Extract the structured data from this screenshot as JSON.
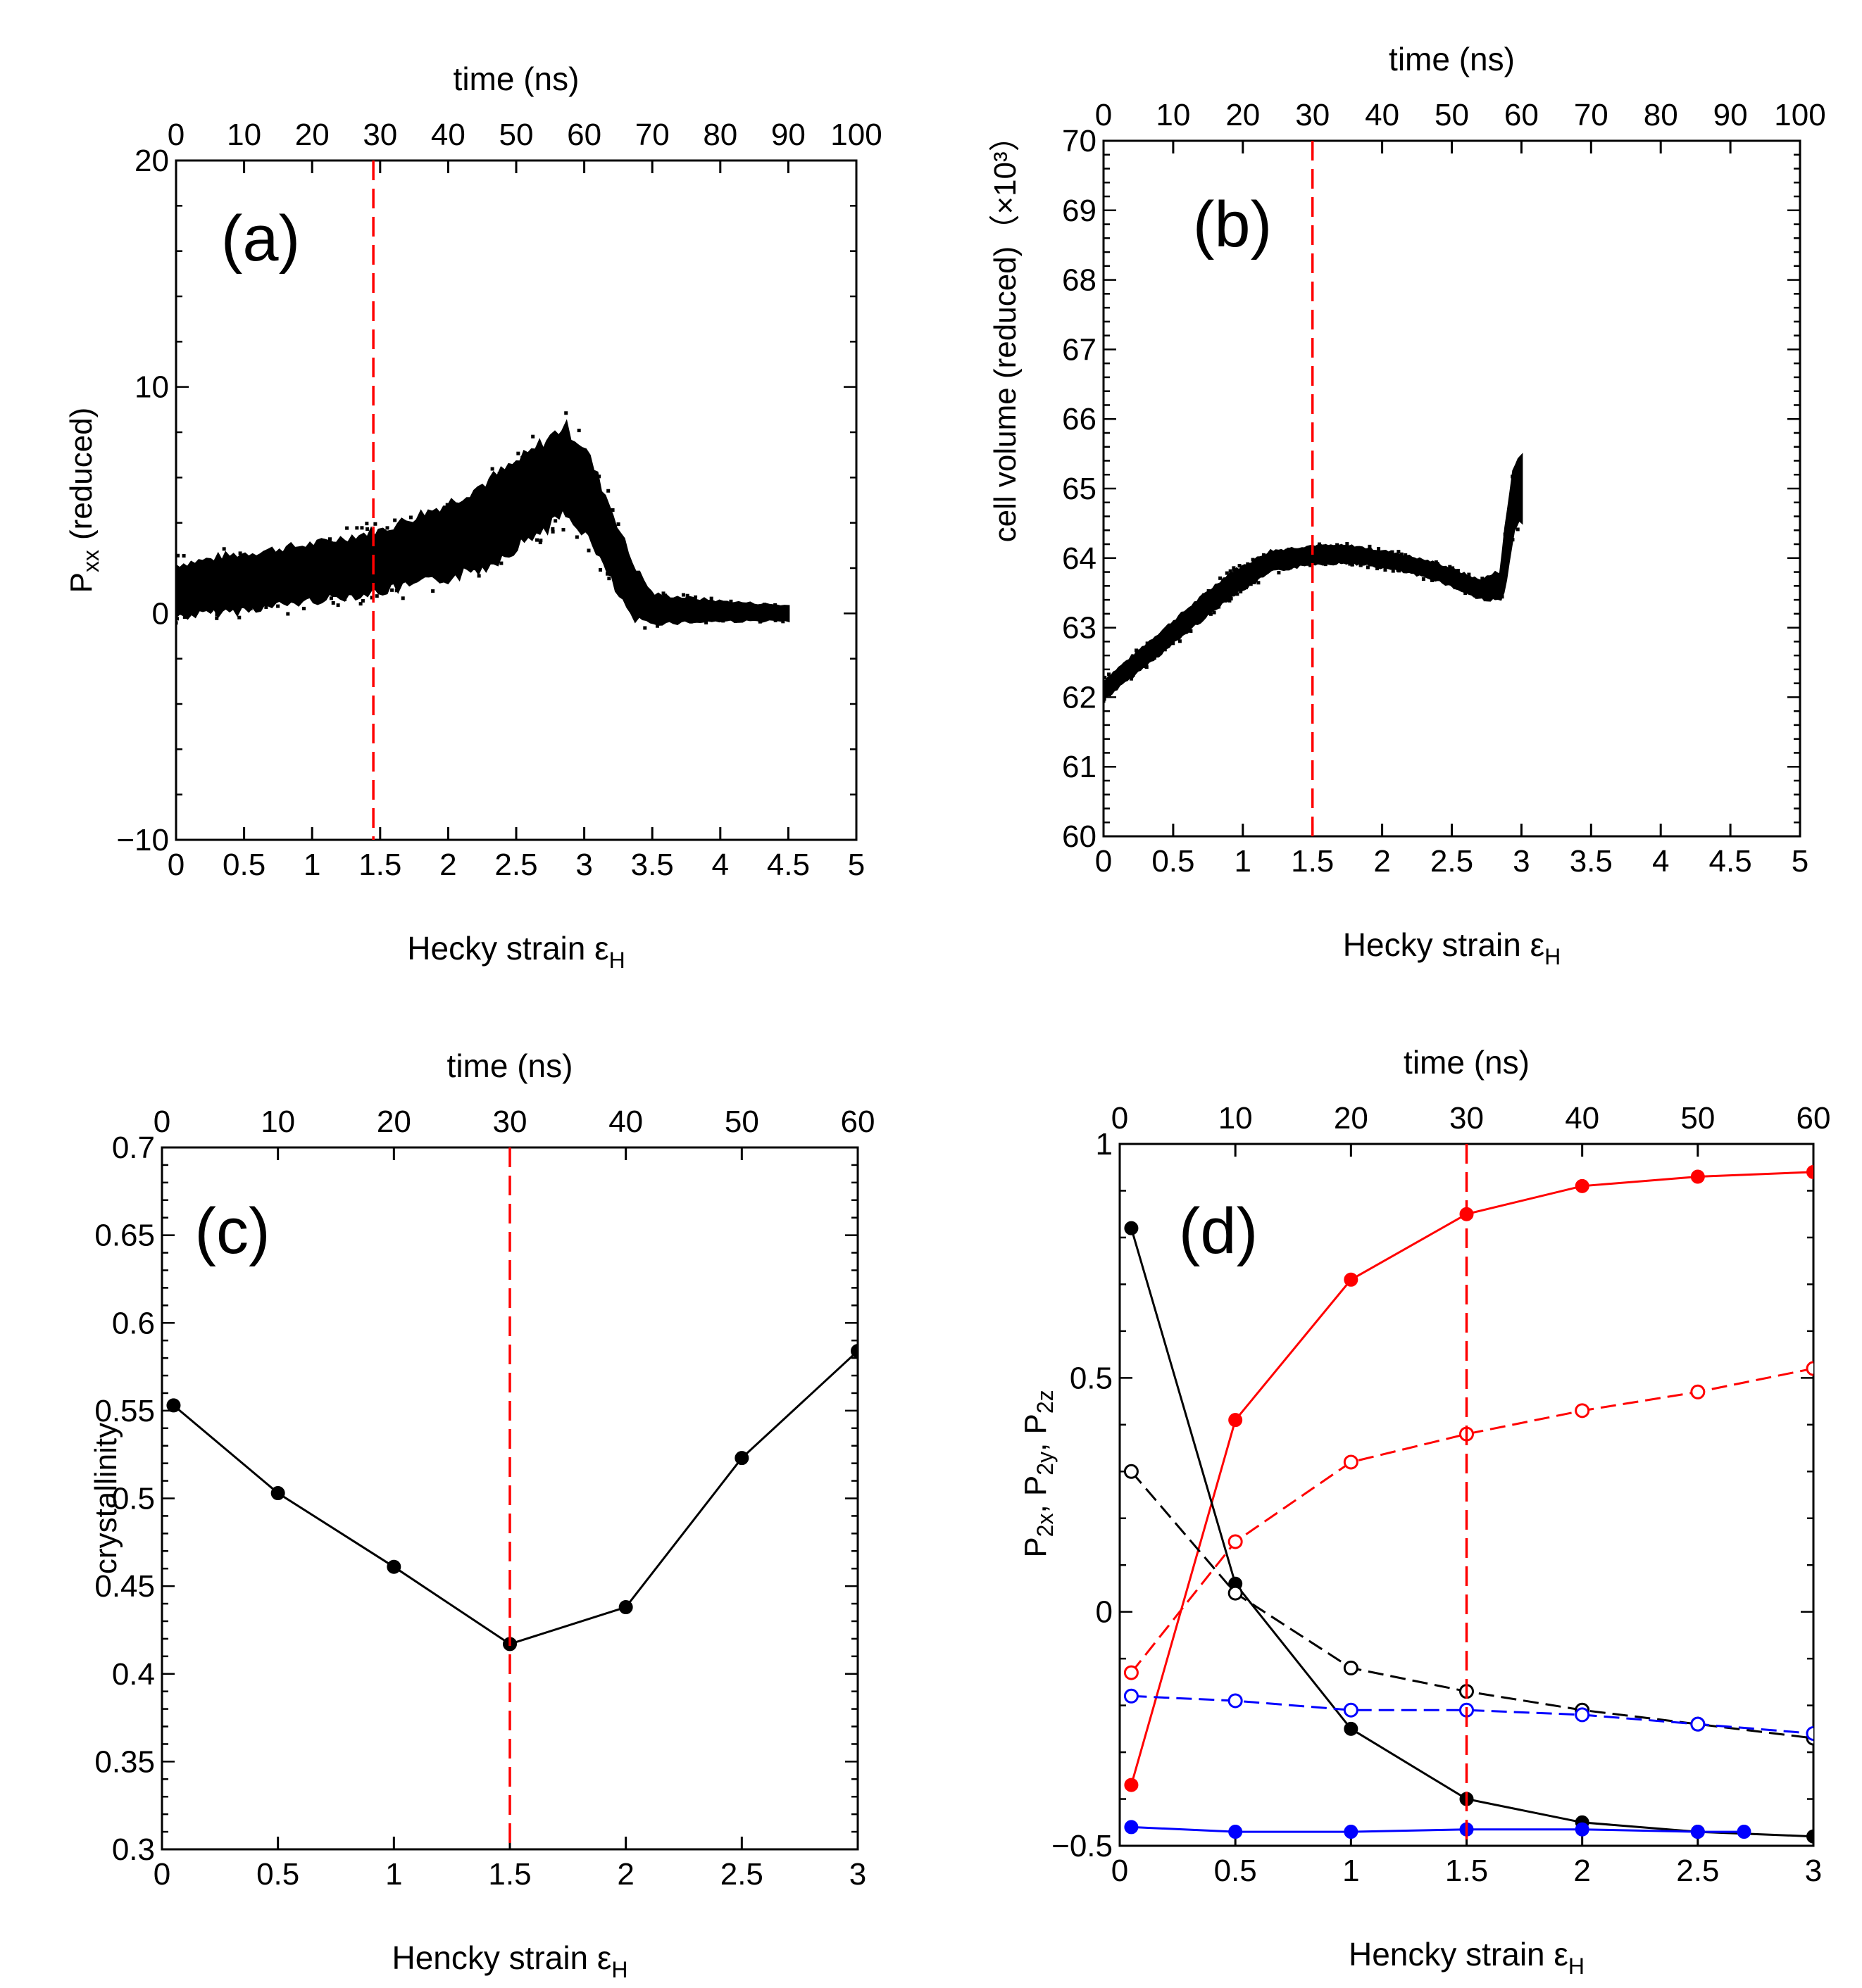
{
  "figure": {
    "background": "#ffffff",
    "colors": {
      "black": "#000000",
      "red": "#ff0000",
      "blue": "#0000ff",
      "dashed_marker": "#ff0000"
    }
  },
  "chart_data": [
    {
      "id": "a",
      "type": "scatter",
      "label": "(a)",
      "title": "time  (ns)",
      "xlabel": "Hecky strain ε",
      "xlabel_sub": "H",
      "ylabel": "P",
      "ylabel_sub": "xx",
      "ylabel_tail": "(reduced)",
      "xlim": [
        0,
        5
      ],
      "ylim": [
        -10,
        20
      ],
      "x_ticks": [
        0,
        0.5,
        1,
        1.5,
        2,
        2.5,
        3,
        3.5,
        4,
        4.5,
        5
      ],
      "x_tick_labels": [
        "0",
        "0.5",
        "1",
        "1.5",
        "2",
        "2.5",
        "3",
        "3.5",
        "4",
        "4.5",
        "5"
      ],
      "y_ticks": [
        -10,
        0,
        10,
        20
      ],
      "y_tick_labels": [
        "−10",
        "0",
        "10",
        "20"
      ],
      "top_ticks": [
        0,
        0.5,
        1,
        1.5,
        2,
        2.5,
        3,
        3.5,
        4,
        4.5,
        5
      ],
      "top_tick_labels": [
        "0",
        "10",
        "20",
        "30",
        "40",
        "50",
        "60",
        "70",
        "80",
        "90",
        "100"
      ],
      "vline_x": 1.45,
      "band": {
        "x": [
          0,
          0.5,
          1,
          1.5,
          2,
          2.3,
          2.6,
          2.85,
          3.0,
          3.2,
          3.35,
          3.5,
          4.0,
          4.5
        ],
        "mid": [
          1.0,
          1.4,
          1.8,
          2.3,
          3.2,
          4.0,
          5.2,
          6.3,
          5.5,
          3.0,
          1.0,
          0.2,
          0.1,
          0.0
        ],
        "half": [
          1.1,
          1.2,
          1.2,
          1.3,
          1.6,
          1.8,
          1.8,
          1.9,
          1.8,
          1.5,
          1.2,
          0.6,
          0.4,
          0.3
        ],
        "series_name": "Pxx"
      }
    },
    {
      "id": "b",
      "type": "scatter",
      "label": "(b)",
      "title": "time  (ns)",
      "xlabel": "Hecky strain ε",
      "xlabel_sub": "H",
      "ylabel": "cell volume  (reduced)",
      "ylabel_exp": "（×10³）",
      "xlim": [
        0,
        5
      ],
      "ylim": [
        60,
        70
      ],
      "x_ticks": [
        0,
        0.5,
        1,
        1.5,
        2,
        2.5,
        3,
        3.5,
        4,
        4.5,
        5
      ],
      "x_tick_labels": [
        "0",
        "0.5",
        "1",
        "1.5",
        "2",
        "2.5",
        "3",
        "3.5",
        "4",
        "4.5",
        "5"
      ],
      "y_ticks": [
        60,
        61,
        62,
        63,
        64,
        65,
        66,
        67,
        68,
        69,
        70
      ],
      "y_tick_labels": [
        "60",
        "61",
        "62",
        "63",
        "64",
        "65",
        "66",
        "67",
        "68",
        "69",
        "70"
      ],
      "top_ticks": [
        0,
        0.5,
        1,
        1.5,
        2,
        2.5,
        3,
        3.5,
        4,
        4.5,
        5
      ],
      "top_tick_labels": [
        "0",
        "10",
        "20",
        "30",
        "40",
        "50",
        "60",
        "70",
        "80",
        "90",
        "100"
      ],
      "vline_x": 1.5,
      "band": {
        "x": [
          0,
          0.3,
          0.6,
          0.9,
          1.2,
          1.5,
          1.8,
          2.1,
          2.4,
          2.7,
          2.85,
          2.9,
          2.95,
          3.0
        ],
        "mid": [
          62.1,
          62.6,
          63.1,
          63.6,
          63.95,
          64.05,
          64.05,
          63.95,
          63.8,
          63.55,
          63.6,
          64.2,
          64.9,
          65.0
        ],
        "half": [
          0.12,
          0.14,
          0.15,
          0.16,
          0.14,
          0.12,
          0.11,
          0.11,
          0.11,
          0.12,
          0.2,
          0.4,
          0.45,
          0.45
        ],
        "series_name": "cell volume"
      }
    },
    {
      "id": "c",
      "type": "line",
      "label": "(c)",
      "title": "time  (ns)",
      "xlabel": "Hencky strain ε",
      "xlabel_sub": "H",
      "ylabel": "crystallinity",
      "xlim": [
        0,
        3
      ],
      "ylim": [
        0.3,
        0.7
      ],
      "x_ticks": [
        0,
        0.5,
        1,
        1.5,
        2,
        2.5,
        3
      ],
      "x_tick_labels": [
        "0",
        "0.5",
        "1",
        "1.5",
        "2",
        "2.5",
        "3"
      ],
      "y_ticks": [
        0.3,
        0.35,
        0.4,
        0.45,
        0.5,
        0.55,
        0.6,
        0.65,
        0.7
      ],
      "y_tick_labels": [
        "0.3",
        "0.35",
        "0.4",
        "0.45",
        "0.5",
        "0.55",
        "0.6",
        "0.65",
        "0.7"
      ],
      "top_ticks": [
        0,
        0.5,
        1,
        1.5,
        2,
        2.5,
        3
      ],
      "top_tick_labels": [
        "0",
        "10",
        "20",
        "30",
        "40",
        "50",
        "60"
      ],
      "vline_x": 1.5,
      "series": [
        {
          "name": "crystallinity",
          "color": "#000000",
          "dash": false,
          "marker": "filled",
          "x": [
            0.05,
            0.5,
            1.0,
            1.5,
            2.0,
            2.5,
            3.0
          ],
          "y": [
            0.553,
            0.503,
            0.461,
            0.417,
            0.438,
            0.523,
            0.584
          ]
        }
      ]
    },
    {
      "id": "d",
      "type": "line",
      "label": "(d)",
      "title": "time  (ns)",
      "xlabel": "Hencky strain ε",
      "xlabel_sub": "H",
      "ylabel": "P",
      "ylabel_parts": [
        "P",
        "2x",
        ", P",
        "2y",
        ", P",
        "2z"
      ],
      "xlim": [
        0,
        3
      ],
      "ylim": [
        -0.5,
        1
      ],
      "x_ticks": [
        0,
        0.5,
        1,
        1.5,
        2,
        2.5,
        3
      ],
      "x_tick_labels": [
        "0",
        "0.5",
        "1",
        "1.5",
        "2",
        "2.5",
        "3"
      ],
      "y_ticks": [
        -0.5,
        0,
        0.5,
        1
      ],
      "y_tick_labels": [
        "−0.5",
        "0",
        "0.5",
        "1"
      ],
      "top_ticks": [
        0,
        0.5,
        1,
        1.5,
        2,
        2.5,
        3
      ],
      "top_tick_labels": [
        "0",
        "10",
        "20",
        "30",
        "40",
        "50",
        "60"
      ],
      "vline_x": 1.5,
      "series": [
        {
          "name": "P2x filled",
          "color": "#ff0000",
          "dash": false,
          "marker": "filled",
          "x": [
            0.05,
            0.5,
            1.0,
            1.5,
            2.0,
            2.5,
            3.0
          ],
          "y": [
            -0.37,
            0.41,
            0.71,
            0.85,
            0.91,
            0.93,
            0.94
          ]
        },
        {
          "name": "P2x open",
          "color": "#ff0000",
          "dash": true,
          "marker": "open",
          "x": [
            0.05,
            0.5,
            1.0,
            1.5,
            2.0,
            2.5,
            3.0
          ],
          "y": [
            -0.13,
            0.15,
            0.32,
            0.38,
            0.43,
            0.47,
            0.52
          ]
        },
        {
          "name": "P2y filled",
          "color": "#000000",
          "dash": false,
          "marker": "filled",
          "x": [
            0.05,
            0.5,
            1.0,
            1.5,
            2.0,
            2.5,
            3.0
          ],
          "y": [
            0.82,
            0.06,
            -0.25,
            -0.4,
            -0.45,
            -0.47,
            -0.48
          ]
        },
        {
          "name": "P2y open",
          "color": "#000000",
          "dash": true,
          "marker": "open",
          "x": [
            0.05,
            0.5,
            1.0,
            1.5,
            2.0,
            2.5,
            3.0
          ],
          "y": [
            0.3,
            0.04,
            -0.12,
            -0.17,
            -0.21,
            -0.24,
            -0.27
          ]
        },
        {
          "name": "P2z open",
          "color": "#0000ff",
          "dash": true,
          "marker": "open",
          "x": [
            0.05,
            0.5,
            1.0,
            1.5,
            2.0,
            2.5,
            3.0
          ],
          "y": [
            -0.18,
            -0.19,
            -0.21,
            -0.21,
            -0.22,
            -0.24,
            -0.26
          ]
        },
        {
          "name": "P2z filled",
          "color": "#0000ff",
          "dash": false,
          "marker": "filled",
          "x": [
            0.05,
            0.5,
            1.0,
            1.5,
            2.0,
            2.5,
            2.7
          ],
          "y": [
            -0.46,
            -0.47,
            -0.47,
            -0.465,
            -0.465,
            -0.47,
            -0.47
          ]
        }
      ]
    }
  ]
}
